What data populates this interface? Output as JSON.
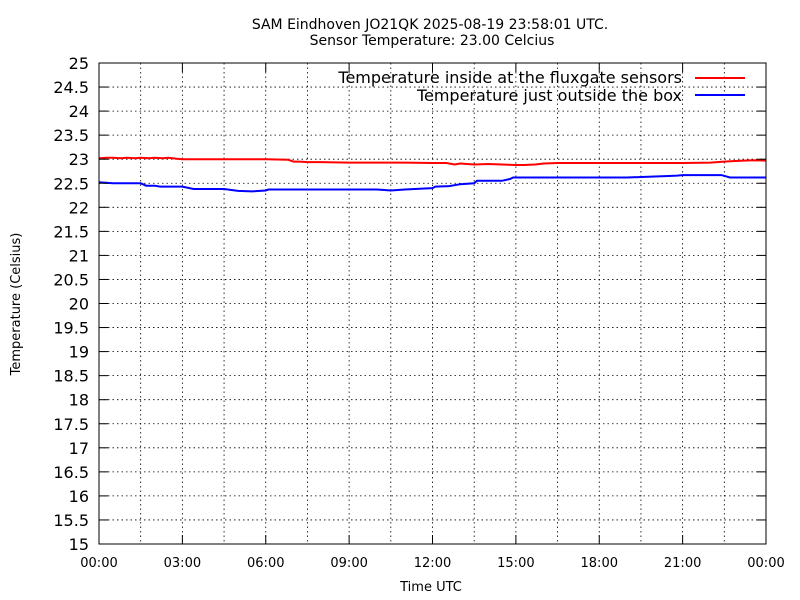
{
  "chart_data": {
    "type": "line",
    "title": "SAM Eindhoven JO21QK 2025-08-19 23:58:01 UTC.",
    "subtitle": "Sensor Temperature: 23.00 Celcius",
    "xlabel": "Time UTC",
    "ylabel": "Temperature (Celsius)",
    "xlim": [
      0,
      24
    ],
    "ylim": [
      15,
      25
    ],
    "x_unit": "hours UTC",
    "xticks": [
      {
        "x": 0,
        "label": "00:00"
      },
      {
        "x": 3,
        "label": "03:00"
      },
      {
        "x": 6,
        "label": "06:00"
      },
      {
        "x": 9,
        "label": "09:00"
      },
      {
        "x": 12,
        "label": "12:00"
      },
      {
        "x": 15,
        "label": "15:00"
      },
      {
        "x": 18,
        "label": "18:00"
      },
      {
        "x": 21,
        "label": "21:00"
      },
      {
        "x": 24,
        "label": "00:00"
      }
    ],
    "yticks": [
      {
        "y": 25,
        "label": "25"
      },
      {
        "y": 24.5,
        "label": "24.5"
      },
      {
        "y": 24,
        "label": "24"
      },
      {
        "y": 23.5,
        "label": "23.5"
      },
      {
        "y": 23,
        "label": "23"
      },
      {
        "y": 22.5,
        "label": "22.5"
      },
      {
        "y": 22,
        "label": "22"
      },
      {
        "y": 21.5,
        "label": "21.5"
      },
      {
        "y": 21,
        "label": "21"
      },
      {
        "y": 20.5,
        "label": "20.5"
      },
      {
        "y": 20,
        "label": "20"
      },
      {
        "y": 19.5,
        "label": "19.5"
      },
      {
        "y": 19,
        "label": "19"
      },
      {
        "y": 18.5,
        "label": "18.5"
      },
      {
        "y": 18,
        "label": "18"
      },
      {
        "y": 17.5,
        "label": "17.5"
      },
      {
        "y": 17,
        "label": "17"
      },
      {
        "y": 16.5,
        "label": "16.5"
      },
      {
        "y": 16,
        "label": "16"
      },
      {
        "y": 15.5,
        "label": "15.5"
      },
      {
        "y": 15,
        "label": "15"
      }
    ],
    "grid": true,
    "legend_position": "top-right",
    "series": [
      {
        "name": "Temperature inside at the fluxgate sensors",
        "color": "#ff0000",
        "x": [
          0,
          0.3,
          0.5,
          0.8,
          1.0,
          1.3,
          1.5,
          1.8,
          2.0,
          2.3,
          2.5,
          2.8,
          3.0,
          3.5,
          4.0,
          5.0,
          6.0,
          6.8,
          7.0,
          7.2,
          7.5,
          8.0,
          9.0,
          10.0,
          11.0,
          12.0,
          12.5,
          12.8,
          13.0,
          13.5,
          14.0,
          14.5,
          15.0,
          15.3,
          15.7,
          16.0,
          16.5,
          17.0,
          18.0,
          19.0,
          20.0,
          21.0,
          22.0,
          22.5,
          22.8,
          23.2,
          23.6,
          24.0
        ],
        "y": [
          23.02,
          23.03,
          23.03,
          23.02,
          23.03,
          23.02,
          23.03,
          23.02,
          23.03,
          23.02,
          23.03,
          23.01,
          23.0,
          23.0,
          23.0,
          23.0,
          23.0,
          22.99,
          22.95,
          22.95,
          22.94,
          22.94,
          22.93,
          22.93,
          22.93,
          22.92,
          22.92,
          22.89,
          22.91,
          22.89,
          22.9,
          22.89,
          22.88,
          22.88,
          22.89,
          22.91,
          22.92,
          22.92,
          22.92,
          22.92,
          22.92,
          22.92,
          22.93,
          22.95,
          22.96,
          22.97,
          22.98,
          22.97
        ]
      },
      {
        "name": "Temperature just outside the box",
        "color": "#0000ff",
        "x": [
          0,
          0.5,
          1.0,
          1.5,
          1.7,
          1.8,
          2.0,
          2.2,
          3.0,
          3.4,
          3.5,
          4.0,
          4.5,
          5.0,
          5.5,
          6.0,
          6.1,
          6.3,
          7.0,
          8.0,
          9.0,
          10.0,
          10.5,
          11.0,
          12.0,
          12.1,
          12.6,
          13.0,
          13.5,
          13.6,
          14.0,
          14.5,
          14.8,
          14.9,
          15.5,
          16.0,
          17.0,
          18.0,
          19.0,
          20.0,
          20.5,
          20.8,
          21.0,
          21.5,
          22.0,
          22.4,
          22.7,
          23.0,
          24.0
        ],
        "y": [
          22.52,
          22.5,
          22.5,
          22.5,
          22.45,
          22.45,
          22.45,
          22.43,
          22.43,
          22.38,
          22.38,
          22.38,
          22.38,
          22.34,
          22.33,
          22.35,
          22.37,
          22.37,
          22.37,
          22.37,
          22.37,
          22.37,
          22.35,
          22.37,
          22.4,
          22.43,
          22.44,
          22.48,
          22.5,
          22.55,
          22.55,
          22.55,
          22.59,
          22.62,
          22.62,
          22.62,
          22.62,
          22.62,
          22.62,
          22.64,
          22.65,
          22.66,
          22.67,
          22.67,
          22.67,
          22.67,
          22.62,
          22.62,
          22.62
        ]
      }
    ]
  }
}
